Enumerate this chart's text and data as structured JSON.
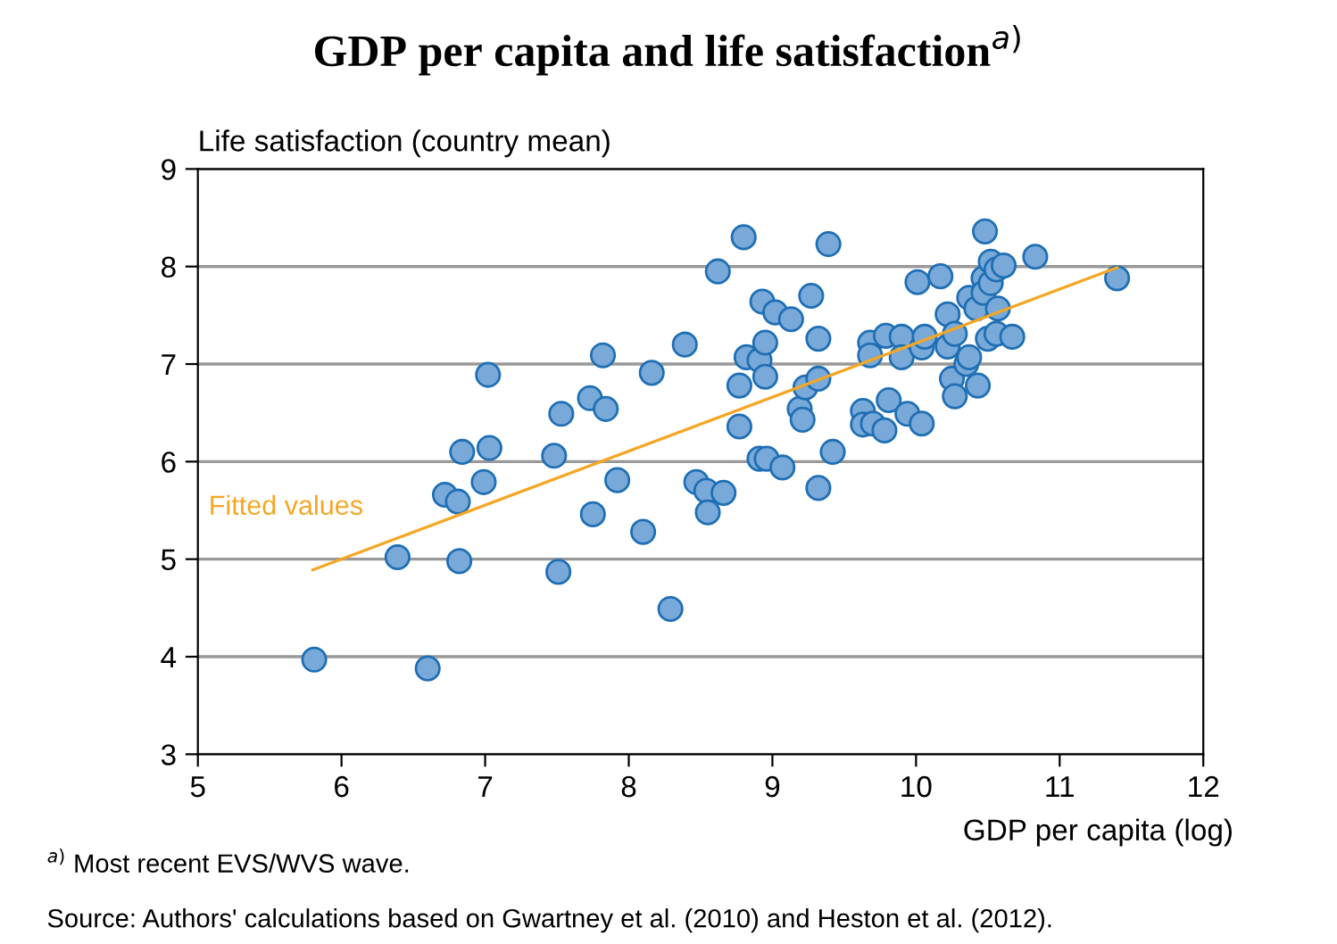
{
  "chart_data": {
    "type": "scatter",
    "title": "GDP per capita and life satisfaction$^{a)}$",
    "xlabel": "GDP per capita (log)",
    "ylabel": "Life satisfaction (country mean)",
    "annotations": [
      "$^{a)}$ Most recent EVS/WVS wave.",
      "Source: Authors' calculations based on Gwartney et al. (2010) and Heston et al. (2012)."
    ],
    "xlim": [
      5,
      12
    ],
    "xticks": [
      5,
      6,
      7,
      8,
      9,
      10,
      11,
      12
    ],
    "ylim": [
      3,
      9
    ],
    "yticks": [
      3,
      4,
      5,
      6,
      7,
      8,
      9
    ],
    "grid": "y",
    "legend": false,
    "marker": "circle",
    "series": [
      {
        "color": "#78a9d9",
        "x": [
          5.81,
          6.39,
          6.6,
          6.72,
          6.81,
          6.82,
          6.84,
          6.99,
          7.02,
          7.03,
          7.48,
          7.51,
          7.53,
          7.73,
          7.75,
          7.82,
          7.84,
          7.92,
          8.1,
          8.16,
          8.29,
          8.39,
          8.47,
          8.54,
          8.55,
          8.62,
          8.66,
          8.8,
          8.77,
          8.77,
          8.82,
          8.91,
          8.95,
          8.93,
          8.95,
          8.91,
          8.96,
          9.02,
          9.07,
          9.13,
          9.19,
          9.21,
          9.23,
          9.27,
          9.32,
          9.32,
          9.32,
          9.39,
          9.42,
          9.63,
          9.63,
          9.7,
          9.78,
          9.68,
          9.68,
          9.79,
          9.81,
          9.9,
          9.9,
          9.94,
          10.01,
          10.04,
          10.06,
          10.04,
          10.17,
          10.22,
          10.22,
          10.27,
          10.25,
          10.27,
          10.35,
          10.37,
          10.43,
          10.37,
          10.42,
          10.47,
          10.47,
          10.52,
          10.52,
          10.56,
          10.61,
          10.48,
          10.57,
          10.5,
          10.56,
          10.67,
          10.83,
          11.4
        ],
        "values": [
          3.97,
          5.02,
          3.88,
          5.66,
          5.59,
          4.98,
          6.1,
          5.79,
          6.89,
          6.14,
          6.06,
          4.87,
          6.49,
          6.65,
          5.46,
          7.09,
          6.54,
          5.81,
          5.28,
          6.91,
          4.49,
          7.2,
          5.79,
          5.7,
          5.48,
          7.95,
          5.68,
          8.3,
          6.78,
          6.36,
          7.07,
          7.04,
          7.22,
          7.64,
          6.87,
          6.03,
          6.03,
          7.53,
          5.94,
          7.46,
          6.54,
          6.43,
          6.76,
          7.7,
          7.26,
          6.85,
          5.73,
          8.23,
          6.1,
          6.52,
          6.38,
          6.39,
          6.32,
          7.22,
          7.09,
          7.29,
          6.63,
          7.28,
          7.07,
          6.49,
          7.84,
          7.17,
          7.28,
          6.39,
          7.9,
          7.51,
          7.18,
          7.31,
          6.85,
          6.67,
          7.0,
          7.07,
          6.78,
          7.68,
          7.57,
          7.88,
          7.73,
          8.05,
          7.83,
          7.97,
          8.01,
          8.36,
          7.57,
          7.26,
          7.31,
          7.28,
          8.1,
          7.88
        ]
      },
      {
        "type": "line",
        "name": "Fitted values",
        "color": "#f5a623",
        "marker": "none",
        "x": [
          5.8,
          11.4
        ],
        "values": [
          4.89,
          7.99
        ]
      }
    ]
  }
}
